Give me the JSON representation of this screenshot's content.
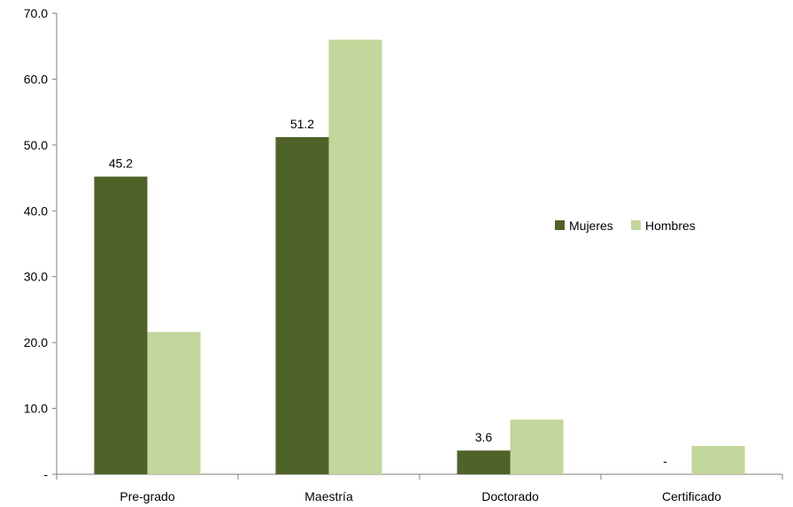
{
  "chart_data": {
    "type": "bar",
    "title": "",
    "xlabel": "",
    "ylabel": "",
    "ylim": [
      0,
      70
    ],
    "yticks": [
      {
        "value": 0,
        "label": "-"
      },
      {
        "value": 10,
        "label": "10.0"
      },
      {
        "value": 20,
        "label": "20.0"
      },
      {
        "value": 30,
        "label": "30.0"
      },
      {
        "value": 40,
        "label": "40.0"
      },
      {
        "value": 50,
        "label": "50.0"
      },
      {
        "value": 60,
        "label": "60.0"
      },
      {
        "value": 70,
        "label": "70.0"
      }
    ],
    "categories": [
      "Pre-grado",
      "Maestría",
      "Doctorado",
      "Certificado"
    ],
    "series": [
      {
        "name": "Mujeres",
        "color": "#4f6228",
        "values": [
          45.2,
          51.2,
          3.6,
          0
        ],
        "data_labels": [
          "45.2",
          "51.2",
          "3.6",
          "-"
        ]
      },
      {
        "name": "Hombres",
        "color": "#c3d69b",
        "values": [
          21.6,
          66.0,
          8.3,
          4.3
        ]
      }
    ],
    "legend_position": "right",
    "grid": false
  }
}
